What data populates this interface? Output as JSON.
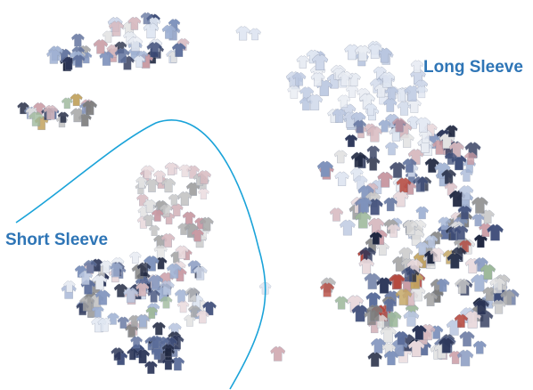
{
  "labels": {
    "long_sleeve": "Long Sleeve",
    "short_sleeve": "Short Sleeve"
  },
  "colors": {
    "label_text": "#2e75b6",
    "boundary_line": "#1aa3d9",
    "background": "#ffffff"
  },
  "shirt_palette": [
    "#e8ecf3",
    "#dfe6f2",
    "#cfd8ea",
    "#b9c6e0",
    "#9fb1d3",
    "#7f93bd",
    "#5d6f9c",
    "#3f4e7a",
    "#2b3558",
    "#1f2740",
    "#e9d9dc",
    "#d7b9bf",
    "#c99aa3",
    "#e2e2e2",
    "#c8c8c8",
    "#a7a7a7",
    "#7d7d7d",
    "#9db89a",
    "#c2a35f",
    "#b5473d",
    "#d0e3ef",
    "#f1e7e9"
  ],
  "icons": {
    "shirt_thumbnail": "shirt-icon"
  }
}
